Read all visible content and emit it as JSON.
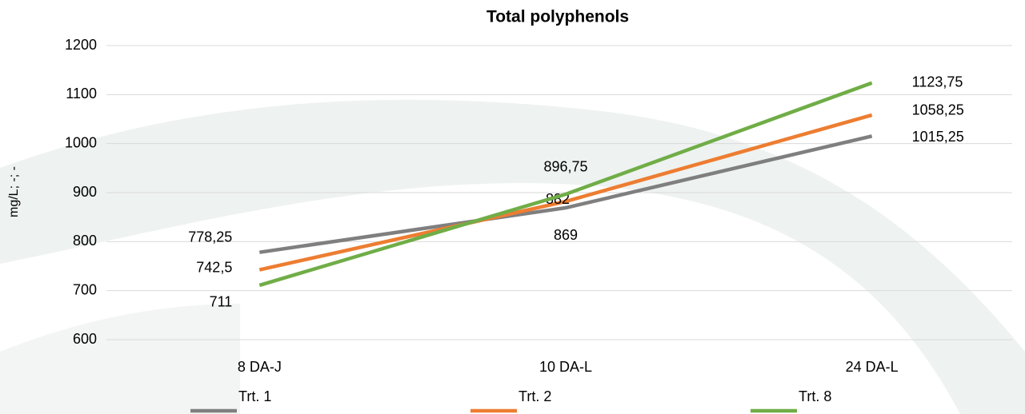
{
  "chart_data": {
    "type": "line",
    "title": "Total polyphenols",
    "y_label": "mg/L; -; -",
    "categories": [
      "8 DA-J",
      "10 DA-L",
      "24 DA-L"
    ],
    "series": [
      {
        "name": "Trt. 1",
        "color": "#7f7f7f",
        "values": [
          778.25,
          869,
          1015.25
        ],
        "value_labels": [
          "778,25",
          "869",
          "1015,25"
        ]
      },
      {
        "name": "Trt. 2",
        "color": "#ed7d31",
        "values": [
          742.5,
          882,
          1058.25
        ],
        "value_labels": [
          "742,5",
          "882",
          "1058,25"
        ]
      },
      {
        "name": "Trt. 8",
        "color": "#70ad47",
        "values": [
          711,
          896.75,
          1123.75
        ],
        "value_labels": [
          "711",
          "896,75",
          "1123,75"
        ]
      }
    ],
    "ylim": [
      600,
      1200
    ],
    "yticks": [
      600,
      700,
      800,
      900,
      1000,
      1100,
      1200
    ],
    "grid": true,
    "legend": "bottom"
  }
}
